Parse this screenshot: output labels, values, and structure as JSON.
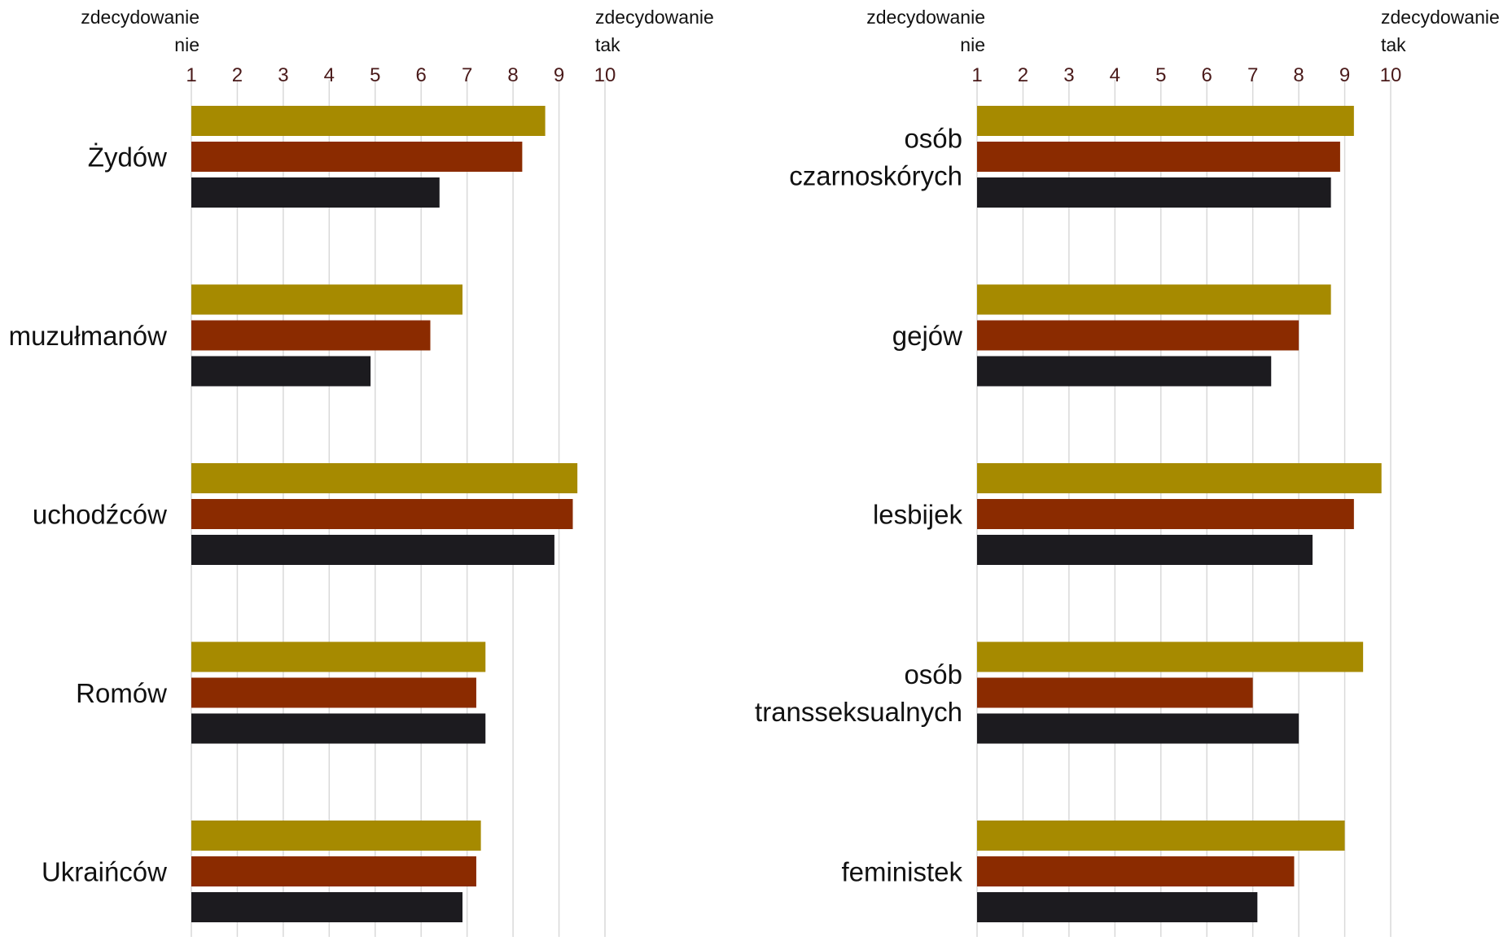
{
  "colors": {
    "series_1": "#a68a00",
    "series_2": "#8b2b00",
    "series_3": "#1c1b1f"
  },
  "chart_data": [
    {
      "type": "bar",
      "orientation": "horizontal",
      "xlim": [
        1,
        10
      ],
      "ticks": [
        "1",
        "2",
        "3",
        "4",
        "5",
        "6",
        "7",
        "8",
        "9",
        "10"
      ],
      "low_label": [
        "zdecydowanie",
        "nie"
      ],
      "high_label": [
        "zdecydowanie",
        "tak"
      ],
      "grid": true,
      "categories": [
        [
          "Żydów"
        ],
        [
          "muzułmanów"
        ],
        [
          "uchodźców"
        ],
        [
          "Romów"
        ],
        [
          "Ukraińców"
        ]
      ],
      "series": [
        {
          "values": [
            8.7,
            6.9,
            9.4,
            7.4,
            7.3
          ]
        },
        {
          "values": [
            8.2,
            6.2,
            9.3,
            7.2,
            7.2
          ]
        },
        {
          "values": [
            6.4,
            4.9,
            8.9,
            7.4,
            6.9
          ]
        }
      ]
    },
    {
      "type": "bar",
      "orientation": "horizontal",
      "xlim": [
        1,
        10
      ],
      "ticks": [
        "1",
        "2",
        "3",
        "4",
        "5",
        "6",
        "7",
        "8",
        "9",
        "10"
      ],
      "low_label": [
        "zdecydowanie",
        "nie"
      ],
      "high_label": [
        "zdecydowanie",
        "tak"
      ],
      "grid": true,
      "categories": [
        [
          "osób",
          "czarnoskórych"
        ],
        [
          "gejów"
        ],
        [
          "lesbijek"
        ],
        [
          "osób",
          "transseksualnych"
        ],
        [
          "feministek"
        ]
      ],
      "series": [
        {
          "values": [
            9.2,
            8.7,
            9.8,
            9.4,
            9.0
          ]
        },
        {
          "values": [
            8.9,
            8.0,
            9.2,
            7.0,
            7.9
          ]
        },
        {
          "values": [
            8.7,
            7.4,
            8.3,
            8.0,
            7.1
          ]
        }
      ]
    }
  ]
}
